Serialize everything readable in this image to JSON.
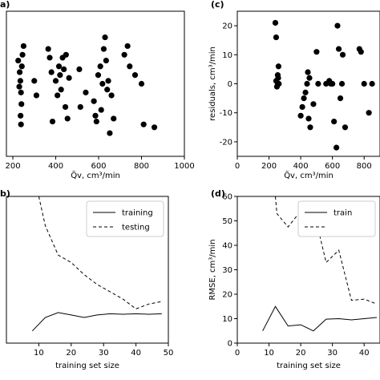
{
  "panel_labels": {
    "a": "a)",
    "c": "(c)",
    "b": "b)",
    "d": "(d)"
  },
  "chart_data": [
    {
      "panel": "a",
      "type": "scatter",
      "xlabel": "Q̃v, cm³/min",
      "ylabel": "",
      "xlim": [
        170,
        1000
      ],
      "ylim": [
        -25,
        25
      ],
      "xticks": [
        200,
        400,
        600,
        800,
        1000
      ],
      "yticks": [],
      "grid": false,
      "points": [
        [
          225,
          8
        ],
        [
          232,
          4
        ],
        [
          235,
          1
        ],
        [
          238,
          -3
        ],
        [
          240,
          -7
        ],
        [
          236,
          -11
        ],
        [
          238,
          -14
        ],
        [
          230,
          -1
        ],
        [
          242,
          6
        ],
        [
          245,
          10
        ],
        [
          250,
          13
        ],
        [
          300,
          1
        ],
        [
          310,
          -4
        ],
        [
          365,
          12
        ],
        [
          372,
          9
        ],
        [
          380,
          4
        ],
        [
          385,
          -13
        ],
        [
          400,
          1
        ],
        [
          408,
          -4
        ],
        [
          415,
          6
        ],
        [
          420,
          3
        ],
        [
          425,
          -2
        ],
        [
          432,
          9
        ],
        [
          438,
          5
        ],
        [
          445,
          -8
        ],
        [
          448,
          10
        ],
        [
          455,
          -12
        ],
        [
          462,
          2
        ],
        [
          510,
          5
        ],
        [
          515,
          -8
        ],
        [
          540,
          -3
        ],
        [
          578,
          -6
        ],
        [
          585,
          -11
        ],
        [
          590,
          -13
        ],
        [
          598,
          3
        ],
        [
          608,
          6
        ],
        [
          612,
          -9
        ],
        [
          618,
          0
        ],
        [
          624,
          12
        ],
        [
          630,
          16
        ],
        [
          635,
          8
        ],
        [
          640,
          -2
        ],
        [
          645,
          1
        ],
        [
          652,
          -17
        ],
        [
          660,
          -4
        ],
        [
          670,
          -12
        ],
        [
          720,
          10
        ],
        [
          735,
          13
        ],
        [
          745,
          6
        ],
        [
          770,
          3
        ],
        [
          800,
          0
        ],
        [
          810,
          -14
        ],
        [
          860,
          -15
        ]
      ]
    },
    {
      "panel": "c",
      "type": "scatter",
      "xlabel": "Q̃v, cm³/min",
      "ylabel": "residuals, cm³/min",
      "xlim": [
        0,
        900
      ],
      "ylim": [
        -25,
        25
      ],
      "xticks": [
        0,
        200,
        400,
        600,
        800
      ],
      "yticks": [
        -20,
        -10,
        0,
        10,
        20
      ],
      "grid": false,
      "points": [
        [
          240,
          21
        ],
        [
          245,
          16
        ],
        [
          260,
          6
        ],
        [
          255,
          3
        ],
        [
          255,
          0
        ],
        [
          245,
          1
        ],
        [
          250,
          -1
        ],
        [
          262,
          0
        ],
        [
          258,
          2
        ],
        [
          400,
          -11
        ],
        [
          410,
          -8
        ],
        [
          420,
          -5
        ],
        [
          430,
          -3
        ],
        [
          440,
          0
        ],
        [
          445,
          4
        ],
        [
          450,
          -12
        ],
        [
          455,
          2
        ],
        [
          460,
          -15
        ],
        [
          480,
          -7
        ],
        [
          500,
          11
        ],
        [
          510,
          0
        ],
        [
          560,
          0
        ],
        [
          580,
          1
        ],
        [
          590,
          0
        ],
        [
          600,
          0
        ],
        [
          610,
          -13
        ],
        [
          625,
          -22
        ],
        [
          632,
          20
        ],
        [
          640,
          12
        ],
        [
          650,
          -5
        ],
        [
          660,
          0
        ],
        [
          665,
          10
        ],
        [
          680,
          -15
        ],
        [
          770,
          12
        ],
        [
          780,
          11
        ],
        [
          800,
          0
        ],
        [
          830,
          -10
        ],
        [
          850,
          0
        ]
      ]
    },
    {
      "panel": "b",
      "type": "line",
      "xlabel": "training set size",
      "ylabel": "",
      "xlim": [
        0,
        50
      ],
      "ylim": [
        0,
        60
      ],
      "xticks": [
        10,
        20,
        30,
        40,
        50
      ],
      "yticks": [],
      "legend": "top-right",
      "series": [
        {
          "name": "training",
          "style": "solid",
          "x": [
            8,
            12,
            16,
            20,
            24,
            28,
            32,
            36,
            40,
            44,
            48
          ],
          "y": [
            5,
            10.5,
            12.5,
            11.5,
            10.5,
            11.5,
            12,
            11.8,
            12,
            11.8,
            12
          ]
        },
        {
          "name": "testing",
          "style": "dashed",
          "x": [
            10,
            12,
            16,
            20,
            24,
            28,
            32,
            36,
            40,
            44,
            48
          ],
          "y": [
            60,
            48,
            36,
            33,
            28,
            24,
            21,
            18,
            14,
            16,
            17
          ]
        }
      ]
    },
    {
      "panel": "d",
      "type": "line",
      "xlabel": "training set size",
      "ylabel": "RMSE, cm³/min",
      "xlim": [
        0,
        45
      ],
      "ylim": [
        0,
        60
      ],
      "xticks": [
        0,
        10,
        20,
        30,
        40
      ],
      "yticks": [
        0,
        10,
        20,
        30,
        40,
        50,
        60
      ],
      "legend": "top-right",
      "series": [
        {
          "name": "train",
          "style": "solid",
          "x": [
            8,
            12,
            16,
            20,
            24,
            28,
            32,
            36,
            40,
            44
          ],
          "y": [
            5,
            15,
            7,
            7.5,
            5,
            9.8,
            10,
            9.5,
            10,
            10.5
          ]
        },
        {
          "name": "",
          "style": "dashed",
          "x": [
            12,
            12.5,
            16,
            20,
            24,
            28,
            32,
            36,
            40,
            44
          ],
          "y": [
            60,
            53,
            47.5,
            54,
            55,
            33,
            38,
            17.5,
            18,
            16
          ]
        }
      ]
    }
  ]
}
